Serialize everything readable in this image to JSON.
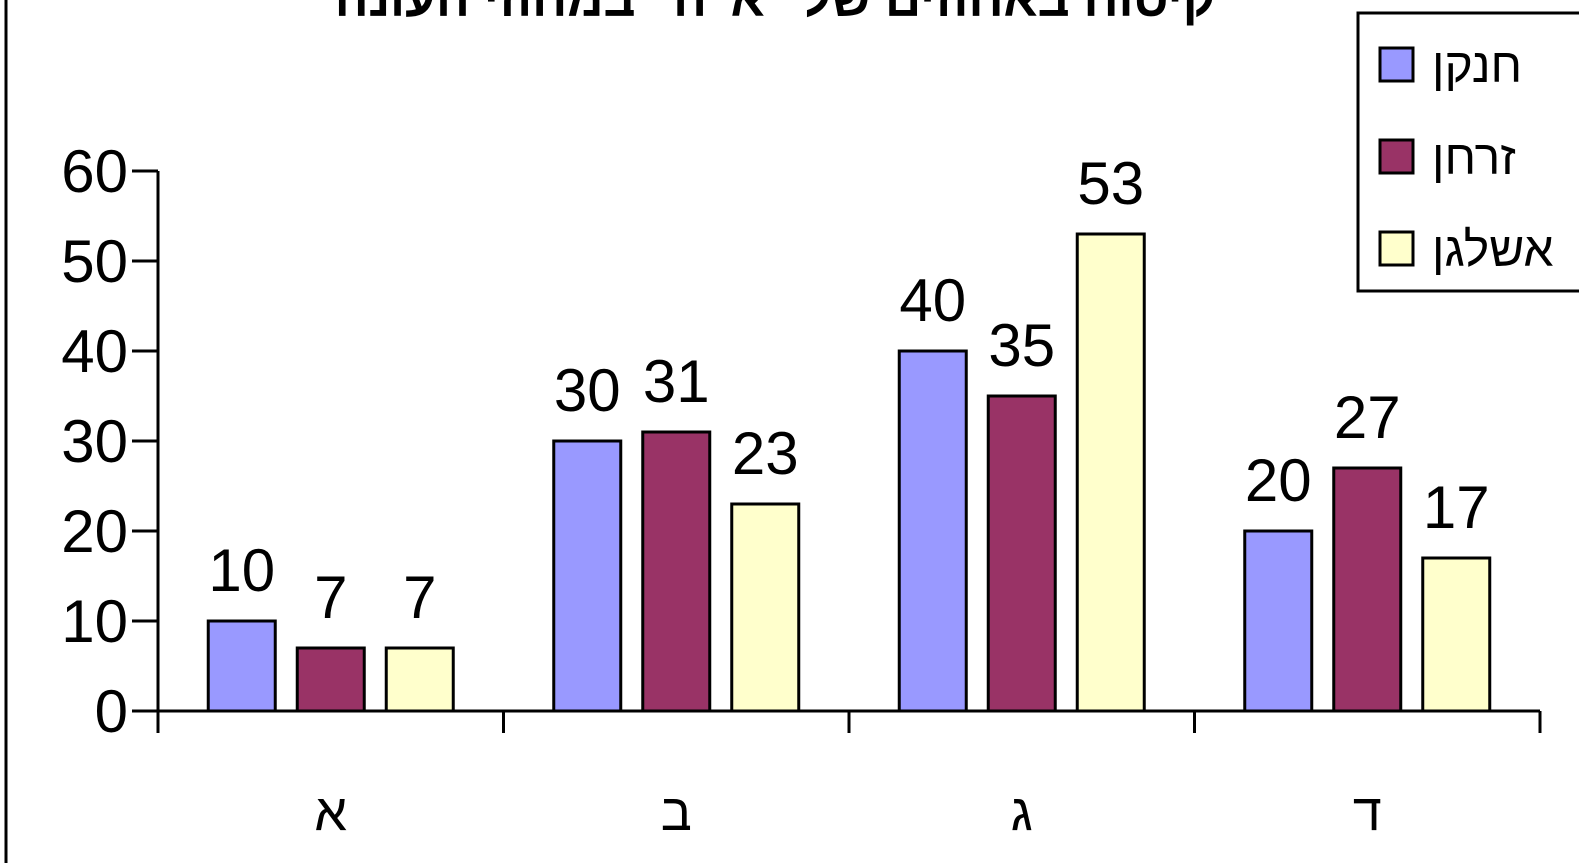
{
  "chart_data": {
    "type": "bar",
    "title": "קיסוח באחוזים של \"א\"ה\" במחוזי העונה",
    "categories": [
      "א",
      "ב",
      "ג",
      "ד"
    ],
    "series": [
      {
        "name": "חנקן",
        "color": "#9999ff",
        "values": [
          10,
          30,
          40,
          20
        ]
      },
      {
        "name": "זרחן",
        "color": "#993366",
        "values": [
          7,
          31,
          35,
          27
        ]
      },
      {
        "name": "אשלגן",
        "color": "#ffffcc",
        "values": [
          7,
          23,
          53,
          17
        ]
      }
    ],
    "ylim": [
      0,
      60
    ],
    "yticks": [
      0,
      10,
      20,
      30,
      40,
      50,
      60
    ],
    "xlabel": "",
    "ylabel": "",
    "grid": false,
    "legend_position": "top-right",
    "data_labels": true
  }
}
